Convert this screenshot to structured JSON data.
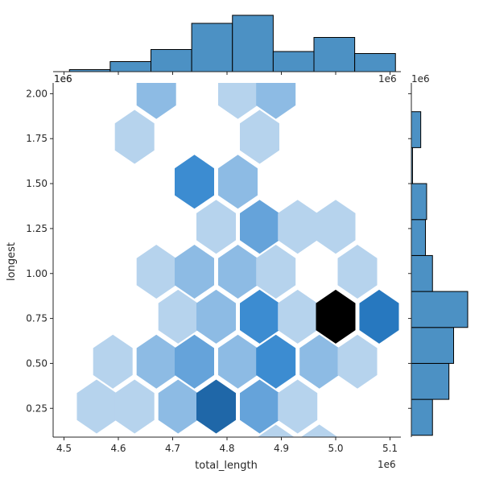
{
  "chart_data": {
    "type": "hexbin-jointplot",
    "xlabel": "total_length",
    "ylabel": "longest",
    "x_scale_text": "1e6",
    "y_scale_text": "1e6",
    "xlim": [
      4.48,
      5.12
    ],
    "ylim": [
      0.09,
      2.06
    ],
    "x_ticks": [
      4.5,
      4.6,
      4.7,
      4.8,
      4.9,
      5.0,
      5.1
    ],
    "x_tick_labels": [
      "4.5",
      "4.6",
      "4.7",
      "4.8",
      "4.9",
      "5.0",
      "5.1"
    ],
    "y_ticks": [
      0.25,
      0.5,
      0.75,
      1.0,
      1.25,
      1.5,
      1.75,
      2.0
    ],
    "y_tick_labels": [
      "0.25",
      "0.50",
      "0.75",
      "1.00",
      "1.25",
      "1.50",
      "1.75",
      "2.00"
    ],
    "hexbin": {
      "colormap": "light-blue to black",
      "max_count": 8,
      "cells": [
        {
          "x": 4.67,
          "y": 2.01,
          "count": 2
        },
        {
          "x": 4.82,
          "y": 2.01,
          "count": 1
        },
        {
          "x": 4.89,
          "y": 2.01,
          "count": 2
        },
        {
          "x": 4.63,
          "y": 1.76,
          "count": 1
        },
        {
          "x": 4.86,
          "y": 1.76,
          "count": 1
        },
        {
          "x": 4.74,
          "y": 1.51,
          "count": 4
        },
        {
          "x": 4.82,
          "y": 1.51,
          "count": 2
        },
        {
          "x": 4.78,
          "y": 1.26,
          "count": 1
        },
        {
          "x": 4.86,
          "y": 1.26,
          "count": 3
        },
        {
          "x": 4.93,
          "y": 1.26,
          "count": 1
        },
        {
          "x": 5.0,
          "y": 1.26,
          "count": 1
        },
        {
          "x": 4.67,
          "y": 1.01,
          "count": 1
        },
        {
          "x": 4.74,
          "y": 1.01,
          "count": 2
        },
        {
          "x": 4.82,
          "y": 1.01,
          "count": 2
        },
        {
          "x": 4.89,
          "y": 1.01,
          "count": 1
        },
        {
          "x": 5.04,
          "y": 1.01,
          "count": 1
        },
        {
          "x": 4.71,
          "y": 0.76,
          "count": 1
        },
        {
          "x": 4.78,
          "y": 0.76,
          "count": 2
        },
        {
          "x": 4.86,
          "y": 0.76,
          "count": 4
        },
        {
          "x": 4.93,
          "y": 0.76,
          "count": 1
        },
        {
          "x": 5.0,
          "y": 0.76,
          "count": 8
        },
        {
          "x": 5.08,
          "y": 0.76,
          "count": 5
        },
        {
          "x": 4.59,
          "y": 0.51,
          "count": 1
        },
        {
          "x": 4.67,
          "y": 0.51,
          "count": 2
        },
        {
          "x": 4.74,
          "y": 0.51,
          "count": 3
        },
        {
          "x": 4.82,
          "y": 0.51,
          "count": 2
        },
        {
          "x": 4.89,
          "y": 0.51,
          "count": 4
        },
        {
          "x": 4.97,
          "y": 0.51,
          "count": 2
        },
        {
          "x": 5.04,
          "y": 0.51,
          "count": 1
        },
        {
          "x": 4.56,
          "y": 0.26,
          "count": 1
        },
        {
          "x": 4.63,
          "y": 0.26,
          "count": 1
        },
        {
          "x": 4.71,
          "y": 0.26,
          "count": 2
        },
        {
          "x": 4.78,
          "y": 0.26,
          "count": 6
        },
        {
          "x": 4.86,
          "y": 0.26,
          "count": 3
        },
        {
          "x": 4.93,
          "y": 0.26,
          "count": 1
        },
        {
          "x": 4.89,
          "y": 0.01,
          "count": 1
        },
        {
          "x": 4.97,
          "y": 0.01,
          "count": 1
        }
      ]
    },
    "x_marginal_histogram": {
      "bin_edges": [
        4.51,
        4.585,
        4.66,
        4.735,
        4.81,
        4.885,
        4.96,
        5.035,
        5.11
      ],
      "counts": [
        1,
        5,
        11,
        24,
        28,
        10,
        17,
        9
      ],
      "color": "#4c91c4"
    },
    "y_marginal_histogram": {
      "bin_edges": [
        0.1,
        0.3,
        0.5,
        0.7,
        0.9,
        1.1,
        1.3,
        1.5,
        1.7,
        1.9
      ],
      "counts": [
        9,
        16,
        18,
        24,
        9,
        6,
        6.5,
        0.5,
        4
      ],
      "color": "#4c91c4"
    }
  }
}
